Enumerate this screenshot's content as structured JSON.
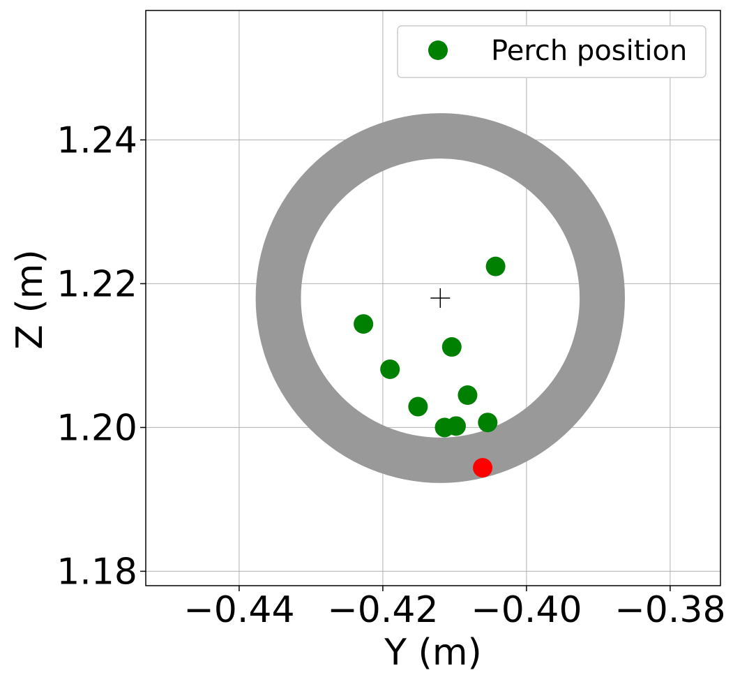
{
  "chart_data": {
    "type": "scatter",
    "xlabel": "Y (m)",
    "ylabel": "Z (m)",
    "xlim": [
      -0.453,
      -0.373
    ],
    "ylim": [
      1.178,
      1.258
    ],
    "xticks": [
      -0.44,
      -0.42,
      -0.4,
      -0.38
    ],
    "xtick_labels": [
      "−0.44",
      "−0.42",
      "−0.40",
      "−0.38"
    ],
    "yticks": [
      1.18,
      1.2,
      1.22,
      1.24
    ],
    "ytick_labels": [
      "1.18",
      "1.20",
      "1.22",
      "1.24"
    ],
    "grid": true,
    "legend": {
      "placement": "upper-right",
      "entries": [
        {
          "label": "Perch position",
          "color": "#008000"
        }
      ]
    },
    "ring": {
      "center": [
        -0.412,
        1.218
      ],
      "inner_radius": 0.0194,
      "outer_radius": 0.0257,
      "color": "#999999"
    },
    "center_marker": {
      "x": -0.412,
      "y": 1.218,
      "symbol": "plus"
    },
    "series": [
      {
        "name": "Perch position",
        "color": "#008000",
        "points": [
          [
            -0.4043,
            1.2224
          ],
          [
            -0.4227,
            1.2144
          ],
          [
            -0.4104,
            1.2112
          ],
          [
            -0.419,
            1.2081
          ],
          [
            -0.4151,
            1.2029
          ],
          [
            -0.4082,
            1.2045
          ],
          [
            -0.4054,
            1.2007
          ],
          [
            -0.4114,
            1.2
          ],
          [
            -0.4098,
            1.2002
          ]
        ]
      },
      {
        "color": "#ff0000",
        "points": [
          [
            -0.4061,
            1.1944
          ]
        ]
      }
    ]
  }
}
